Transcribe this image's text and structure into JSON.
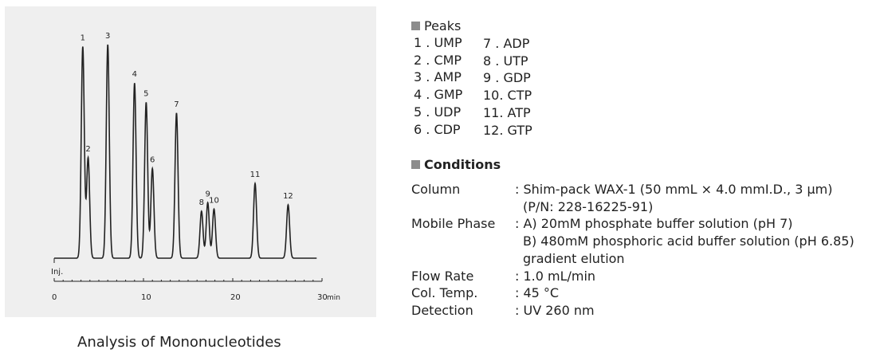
{
  "chart_data": {
    "type": "line",
    "title": "Analysis of Mononucleotides",
    "xlabel": "",
    "ylabel": "",
    "xlim": [
      0,
      30
    ],
    "ylim": [
      0,
      1
    ],
    "x_ticks": [
      0,
      10,
      20,
      30
    ],
    "x_tick_labels": [
      "0",
      "10",
      "20",
      "30"
    ],
    "x_unit": "min",
    "injection_label": "Inj.",
    "grid": false,
    "peaks": [
      {
        "label": "1",
        "rt": 3.2,
        "height": 0.99
      },
      {
        "label": "2",
        "rt": 3.8,
        "height": 0.47
      },
      {
        "label": "3",
        "rt": 6.0,
        "height": 1.0
      },
      {
        "label": "4",
        "rt": 9.0,
        "height": 0.82
      },
      {
        "label": "5",
        "rt": 10.3,
        "height": 0.73
      },
      {
        "label": "6",
        "rt": 11.0,
        "height": 0.42
      },
      {
        "label": "7",
        "rt": 13.7,
        "height": 0.68
      },
      {
        "label": "8",
        "rt": 16.5,
        "height": 0.22
      },
      {
        "label": "9",
        "rt": 17.2,
        "height": 0.26
      },
      {
        "label": "10",
        "rt": 17.9,
        "height": 0.23
      },
      {
        "label": "11",
        "rt": 22.5,
        "height": 0.35
      },
      {
        "label": "12",
        "rt": 26.2,
        "height": 0.25
      }
    ]
  },
  "peaks_legend": {
    "heading": "Peaks",
    "column1": [
      "1 . UMP",
      "2 . CMP",
      "3 . AMP",
      "4 . GMP",
      "5 . UDP",
      "6 . CDP"
    ],
    "column2": [
      "7 . ADP",
      "8 . UTP",
      "9 . GDP",
      "10. CTP",
      "11. ATP",
      "12. GTP"
    ]
  },
  "conditions": {
    "heading": "Conditions",
    "rows": [
      {
        "label": "Column",
        "lines": [
          ": Shim-pack WAX-1 (50 mmL  × 4.0 mmI.D., 3 µm)",
          "(P/N: 228-16225-91)"
        ]
      },
      {
        "label": "Mobile Phase",
        "lines": [
          ": A) 20mM phosphate buffer solution (pH 7)",
          "B) 480mM phosphoric acid buffer solution (pH 6.85)",
          "gradient elution"
        ]
      },
      {
        "label": "Flow Rate",
        "lines": [
          ": 1.0 mL/min"
        ]
      },
      {
        "label": "Col. Temp.",
        "lines": [
          ": 45 °C"
        ]
      },
      {
        "label": "Detection",
        "lines": [
          ": UV 260 nm"
        ]
      }
    ]
  },
  "colors": {
    "panel_background": "#efefef",
    "trace": "#222222",
    "marker_square": "#8c8c8c"
  }
}
